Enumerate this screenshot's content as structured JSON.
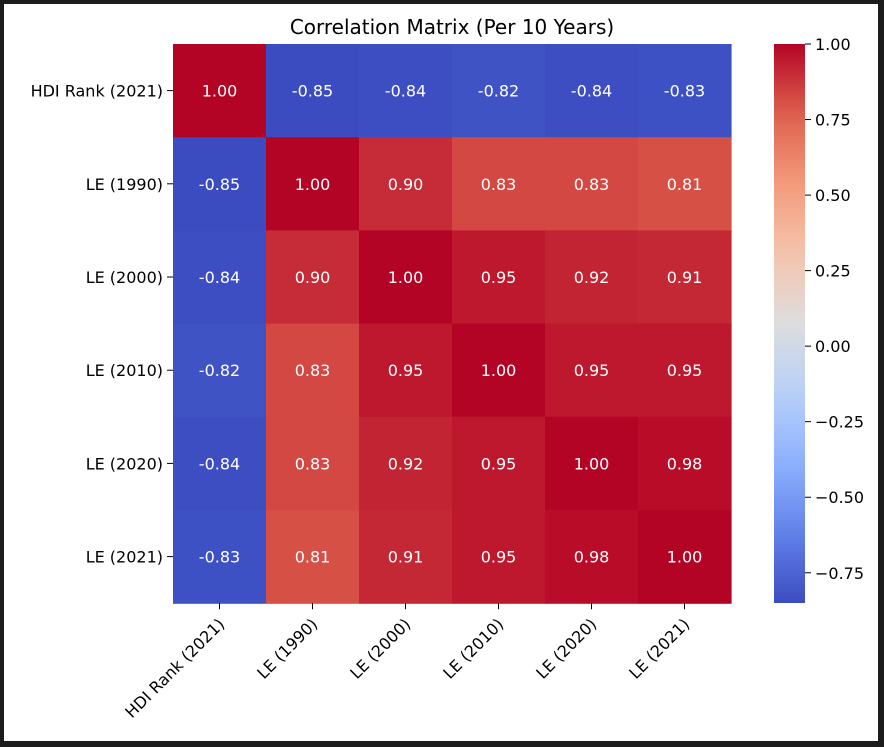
{
  "chart_data": {
    "type": "heatmap",
    "title": "Correlation Matrix (Per 10 Years)",
    "rows": [
      "HDI Rank (2021)",
      "LE (1990)",
      "LE (2000)",
      "LE (2010)",
      "LE (2020)",
      "LE (2021)"
    ],
    "columns": [
      "HDI Rank (2021)",
      "LE (1990)",
      "LE (2000)",
      "LE (2010)",
      "LE (2020)",
      "LE (2021)"
    ],
    "values": [
      [
        1.0,
        -0.85,
        -0.84,
        -0.82,
        -0.84,
        -0.83
      ],
      [
        -0.85,
        1.0,
        0.9,
        0.83,
        0.83,
        0.81
      ],
      [
        -0.84,
        0.9,
        1.0,
        0.95,
        0.92,
        0.91
      ],
      [
        -0.82,
        0.83,
        0.95,
        1.0,
        0.95,
        0.95
      ],
      [
        -0.84,
        0.83,
        0.92,
        0.95,
        1.0,
        0.98
      ],
      [
        -0.83,
        0.81,
        0.91,
        0.95,
        0.98,
        1.0
      ]
    ],
    "colormap": "coolwarm",
    "vmin": -0.85,
    "vmax": 1.0,
    "colorbar_ticks": [
      1.0,
      0.75,
      0.5,
      0.25,
      0.0,
      -0.25,
      -0.5,
      -0.75
    ],
    "colorbar_tick_labels": [
      "1.00",
      "0.75",
      "0.50",
      "0.25",
      "0.00",
      "−0.25",
      "−0.50",
      "−0.75"
    ],
    "annotation_format": "2 decimals",
    "colors": {
      "low": "#3b4cc0",
      "mid": "#dddddd",
      "high": "#b40426",
      "text": "#ffffff",
      "background": "#ffffff",
      "frame": "#1c1c1c"
    }
  }
}
